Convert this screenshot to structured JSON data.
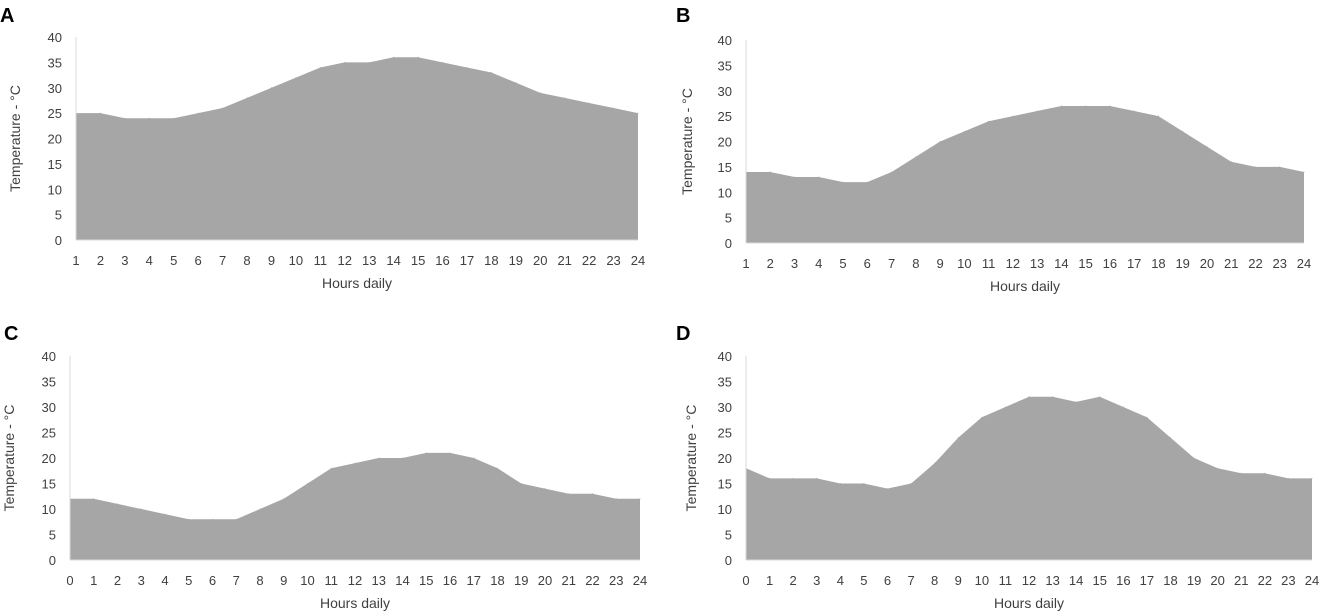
{
  "chart_data": [
    {
      "panel": "A",
      "type": "area",
      "x": [
        1,
        2,
        3,
        4,
        5,
        6,
        7,
        8,
        9,
        10,
        11,
        12,
        13,
        14,
        15,
        16,
        17,
        18,
        19,
        20,
        21,
        22,
        23,
        24
      ],
      "values": [
        25,
        25,
        24,
        24,
        24,
        25,
        26,
        28,
        30,
        32,
        34,
        35,
        35,
        36,
        36,
        35,
        34,
        33,
        31,
        29,
        28,
        27,
        26,
        25
      ],
      "xlabel": "Hours daily",
      "ylabel": "Temperature - °C",
      "yticks": [
        0,
        5,
        10,
        15,
        20,
        25,
        30,
        35,
        40
      ],
      "ylim": [
        0,
        40
      ],
      "color": "#a6a6a6"
    },
    {
      "panel": "B",
      "type": "area",
      "x": [
        1,
        2,
        3,
        4,
        5,
        6,
        7,
        8,
        9,
        10,
        11,
        12,
        13,
        14,
        15,
        16,
        17,
        18,
        19,
        20,
        21,
        22,
        23,
        24
      ],
      "values": [
        14,
        14,
        13,
        13,
        12,
        12,
        14,
        17,
        20,
        22,
        24,
        25,
        26,
        27,
        27,
        27,
        26,
        25,
        22,
        19,
        16,
        15,
        15,
        14
      ],
      "xlabel": "Hours daily",
      "ylabel": "Temperature - °C",
      "yticks": [
        0,
        5,
        10,
        15,
        20,
        25,
        30,
        35,
        40
      ],
      "ylim": [
        0,
        40
      ],
      "color": "#a6a6a6"
    },
    {
      "panel": "C",
      "type": "area",
      "x": [
        0,
        1,
        2,
        3,
        4,
        5,
        6,
        7,
        8,
        9,
        10,
        11,
        12,
        13,
        14,
        15,
        16,
        17,
        18,
        19,
        20,
        21,
        22,
        23,
        24
      ],
      "values": [
        12,
        12,
        11,
        10,
        9,
        8,
        8,
        8,
        10,
        12,
        15,
        18,
        19,
        20,
        20,
        21,
        21,
        20,
        18,
        15,
        14,
        13,
        13,
        12,
        12
      ],
      "xlabel": "Hours daily",
      "ylabel": "Temperature - °C",
      "yticks": [
        0,
        5,
        10,
        15,
        20,
        25,
        30,
        35,
        40
      ],
      "ylim": [
        0,
        40
      ],
      "color": "#a6a6a6"
    },
    {
      "panel": "D",
      "type": "area",
      "x": [
        0,
        1,
        2,
        3,
        4,
        5,
        6,
        7,
        8,
        9,
        10,
        11,
        12,
        13,
        14,
        15,
        16,
        17,
        18,
        19,
        20,
        21,
        22,
        23,
        24
      ],
      "values": [
        18,
        16,
        16,
        16,
        15,
        15,
        14,
        15,
        19,
        24,
        28,
        30,
        32,
        32,
        31,
        32,
        30,
        28,
        24,
        20,
        18,
        17,
        17,
        16,
        16
      ],
      "xlabel": "Hours daily",
      "ylabel": "Temperature - °C",
      "yticks": [
        0,
        5,
        10,
        15,
        20,
        25,
        30,
        35,
        40
      ],
      "ylim": [
        0,
        40
      ],
      "color": "#a6a6a6"
    }
  ]
}
